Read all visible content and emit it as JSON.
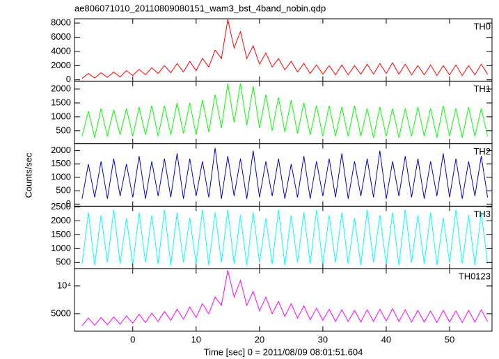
{
  "chart_data": {
    "type": "line",
    "title": "ae806071010_20110809080151_wam3_bst_4band_nobin.qdp",
    "xlabel": "Time [sec] 0 = 2011/08/09 08:01:51.604",
    "ylabel": "Counts/sec",
    "xlim": [
      -9.2,
      56.7
    ],
    "xticks": [
      0,
      10,
      20,
      30,
      40,
      50
    ],
    "x": [
      -8,
      -7,
      -6,
      -5,
      -4,
      -3,
      -2,
      -1,
      0,
      1,
      2,
      3,
      4,
      5,
      6,
      7,
      8,
      9,
      10,
      11,
      12,
      13,
      14,
      15,
      16,
      17,
      18,
      19,
      20,
      21,
      22,
      23,
      24,
      25,
      26,
      27,
      28,
      29,
      30,
      31,
      32,
      33,
      34,
      35,
      36,
      37,
      38,
      39,
      40,
      41,
      42,
      43,
      44,
      45,
      46,
      47,
      48,
      49,
      50,
      51,
      52,
      53,
      54,
      55,
      56
    ],
    "panels": [
      {
        "name": "TH0",
        "color": "#ff0000",
        "ylim": [
          -200,
          8600
        ],
        "yticks": [
          0,
          2000,
          4000,
          6000,
          8000
        ],
        "values": [
          200,
          900,
          250,
          1000,
          350,
          1100,
          400,
          1300,
          600,
          1500,
          700,
          1700,
          900,
          2000,
          1000,
          2300,
          1100,
          2600,
          1300,
          3000,
          1800,
          4200,
          3000,
          8500,
          4500,
          6800,
          3000,
          4800,
          2200,
          3800,
          1800,
          3000,
          1400,
          2600,
          1100,
          2300,
          900,
          2100,
          800,
          2000,
          700,
          2100,
          700,
          2000,
          800,
          2200,
          800,
          2300,
          900,
          2400,
          800,
          2200,
          700,
          2000,
          700,
          2100,
          600,
          2000,
          700,
          2100,
          600,
          2000,
          700,
          2200,
          800
        ]
      },
      {
        "name": "TH1",
        "color": "#00ff00",
        "ylim": [
          30,
          2280
        ],
        "yticks": [
          500,
          1000,
          1500,
          2000
        ],
        "values": [
          300,
          1200,
          250,
          1300,
          300,
          1250,
          350,
          1300,
          300,
          1350,
          350,
          1400,
          300,
          1400,
          350,
          1500,
          400,
          1500,
          350,
          1600,
          450,
          1800,
          600,
          2200,
          800,
          2200,
          700,
          2100,
          600,
          1800,
          500,
          1700,
          450,
          1600,
          400,
          1500,
          350,
          1400,
          300,
          1400,
          300,
          1350,
          300,
          1400,
          300,
          1300,
          250,
          1350,
          300,
          1300,
          250,
          1300,
          300,
          1350,
          300,
          1300,
          250,
          1400,
          300,
          1300,
          250,
          1350,
          300,
          1300,
          300
        ]
      },
      {
        "name": "TH2",
        "color": "#0000cc",
        "ylim": [
          -80,
          2260
        ],
        "yticks": [
          0,
          500,
          1000,
          1500,
          2000
        ],
        "values": [
          200,
          1500,
          250,
          1600,
          200,
          1700,
          300,
          1500,
          250,
          1800,
          200,
          1600,
          300,
          1700,
          250,
          1900,
          200,
          1700,
          300,
          1600,
          250,
          2100,
          200,
          1800,
          300,
          1700,
          200,
          2000,
          250,
          1600,
          300,
          1700,
          200,
          1500,
          250,
          1800,
          200,
          1600,
          300,
          1700,
          250,
          1900,
          200,
          1600,
          300,
          1700,
          250,
          2000,
          200,
          1600,
          300,
          1800,
          250,
          1700,
          200,
          1600,
          300,
          1900,
          250,
          1700,
          200,
          1600,
          300,
          1800,
          250
        ]
      },
      {
        "name": "TH3",
        "color": "#00ffff",
        "ylim": [
          277,
          2525
        ],
        "yticks": [
          500,
          1000,
          1500,
          2000,
          2500
        ],
        "values": [
          450,
          2300,
          400,
          2200,
          500,
          2400,
          450,
          2100,
          400,
          2300,
          500,
          2200,
          450,
          2400,
          400,
          2300,
          500,
          2100,
          450,
          2400,
          400,
          2300,
          500,
          2400,
          450,
          2200,
          400,
          2300,
          500,
          2100,
          450,
          2400,
          400,
          2200,
          500,
          2300,
          450,
          2400,
          400,
          2200,
          500,
          2300,
          450,
          2100,
          400,
          2400,
          500,
          2200,
          450,
          2300,
          400,
          2400,
          500,
          2200,
          450,
          2300,
          400,
          2100,
          500,
          2400,
          450,
          2200,
          400,
          2300,
          450
        ]
      },
      {
        "name": "TH0123",
        "color": "#ff00ff",
        "ylim": [
          1850,
          13100
        ],
        "yticks": [
          5000,
          {
            "value": 10000,
            "label": "10⁴"
          }
        ],
        "values": [
          2800,
          4200,
          2900,
          4300,
          3000,
          4400,
          3100,
          4600,
          3300,
          4900,
          3400,
          5100,
          3600,
          5400,
          3800,
          5800,
          4000,
          6200,
          4300,
          6800,
          5000,
          8000,
          6500,
          12800,
          8000,
          11000,
          6500,
          9000,
          5500,
          8000,
          5000,
          7200,
          4500,
          6800,
          4200,
          6400,
          3900,
          6000,
          3800,
          5800,
          3600,
          5700,
          3600,
          5600,
          3500,
          5700,
          3600,
          5800,
          3700,
          5900,
          3600,
          5700,
          3500,
          5600,
          3500,
          5500,
          3400,
          5600,
          3500,
          5500,
          3400,
          5600,
          3500,
          5700,
          3600
        ]
      }
    ]
  }
}
